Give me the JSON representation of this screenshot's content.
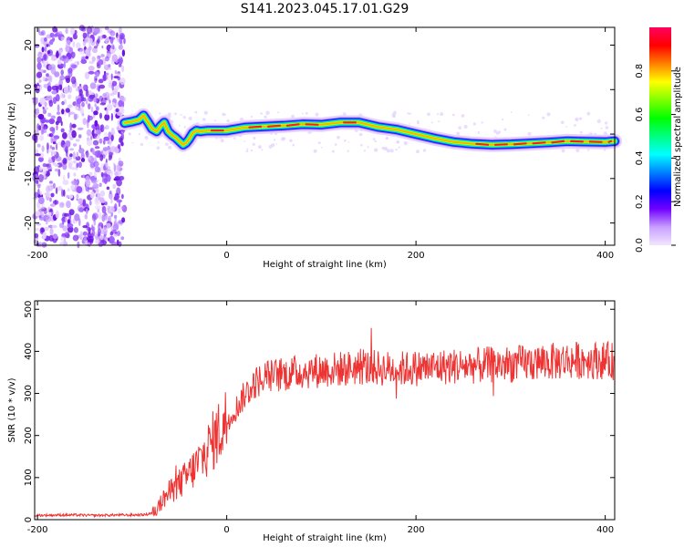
{
  "title": "S141.2023.045.17.01.G29",
  "chart_data": [
    {
      "type": "heatmap",
      "xlabel": "Height of straight line (km)",
      "ylabel": "Frequency (Hz)",
      "xlim": [
        -203,
        410
      ],
      "ylim": [
        -25,
        24
      ],
      "x_ticks": [
        "-200",
        "0",
        "200",
        "400"
      ],
      "y_ticks": [
        "-20",
        "-10",
        "0",
        "10",
        "20"
      ],
      "colorbar": {
        "label": "Normalized spectral amplitude",
        "range": [
          0,
          1
        ],
        "ticks": [
          "0.0",
          "0.2",
          "0.4",
          "0.6",
          "0.8"
        ],
        "colors": [
          "#f3e6ff",
          "#c8a0ff",
          "#7000ff",
          "#0000ff",
          "#0080ff",
          "#00ffff",
          "#00ff80",
          "#00ff00",
          "#80ff00",
          "#ffff00",
          "#ff8000",
          "#ff0000",
          "#ff0060"
        ]
      },
      "noise_region": {
        "x_range": [
          -203,
          -108
        ],
        "freq_range": [
          -25,
          24
        ]
      },
      "ridge": {
        "x": [
          -108,
          -100,
          -93,
          -88,
          -83,
          -79,
          -74,
          -70,
          -66,
          -62,
          -58,
          -54,
          -50,
          -46,
          -43,
          -40,
          -36,
          -32,
          -28,
          -20,
          0,
          20,
          40,
          60,
          80,
          100,
          120,
          140,
          160,
          180,
          200,
          220,
          240,
          260,
          280,
          300,
          320,
          340,
          360,
          380,
          400,
          410
        ],
        "freq": [
          2.5,
          2.8,
          3.2,
          4.2,
          2.6,
          1.2,
          0.6,
          1.8,
          2.6,
          0.6,
          -0.2,
          -0.8,
          -1.6,
          -2.4,
          -2.0,
          -1.2,
          0.2,
          0.8,
          0.6,
          0.8,
          0.8,
          1.5,
          1.7,
          1.9,
          2.2,
          2.1,
          2.6,
          2.6,
          1.6,
          1.0,
          0.0,
          -1.0,
          -1.8,
          -2.2,
          -2.4,
          -2.3,
          -2.1,
          -1.9,
          -1.6,
          -1.7,
          -1.8,
          -1.6
        ]
      }
    },
    {
      "type": "line",
      "xlabel": "Height of straight line (km)",
      "ylabel": "SNR (10 * v/v)",
      "xlim": [
        -203,
        410
      ],
      "ylim": [
        0,
        520
      ],
      "x_ticks": [
        "-200",
        "0",
        "200",
        "400"
      ],
      "y_ticks": [
        "0",
        "100",
        "200",
        "300",
        "400",
        "500"
      ],
      "color": "#ee3333",
      "series": [
        {
          "x": [
            -203,
            -180,
            -160,
            -140,
            -120,
            -100,
            -85,
            -75,
            -65,
            -55,
            -45,
            -35,
            -25,
            -15,
            -5,
            0,
            10,
            20,
            30,
            40,
            60,
            80,
            100,
            120,
            140,
            160,
            180,
            200,
            220,
            240,
            260,
            280,
            300,
            320,
            340,
            360,
            380,
            400,
            410
          ],
          "y": [
            10,
            11,
            11,
            10,
            11,
            11,
            12,
            20,
            55,
            75,
            95,
            120,
            150,
            185,
            220,
            235,
            265,
            300,
            325,
            340,
            345,
            352,
            355,
            358,
            362,
            360,
            358,
            360,
            362,
            365,
            366,
            368,
            370,
            372,
            375,
            378,
            380,
            378,
            376
          ]
        }
      ]
    }
  ]
}
